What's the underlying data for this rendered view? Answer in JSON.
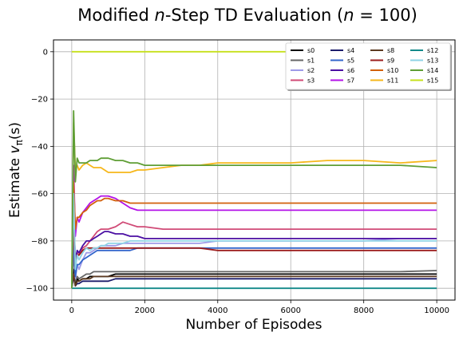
{
  "chart_data": {
    "type": "line",
    "title": "Modified n-Step TD Evaluation (n = 100)",
    "title_parts": [
      "Modified ",
      "n",
      "-Step TD Evaluation (",
      "n",
      " = 100)"
    ],
    "xlabel": "Number of Episodes",
    "ylabel": "Estimate vπ(s)",
    "ylabel_parts": [
      "Estimate ",
      "v",
      "π",
      "(s)"
    ],
    "xlim": [
      -500,
      10500
    ],
    "ylim": [
      -105,
      5
    ],
    "xticks": [
      0,
      2000,
      4000,
      6000,
      8000,
      10000
    ],
    "yticks": [
      0,
      -20,
      -40,
      -60,
      -80,
      -100
    ],
    "grid": true,
    "legend_placement": "top-right",
    "legend_columns": 4,
    "x": [
      0,
      50,
      100,
      150,
      200,
      300,
      400,
      500,
      600,
      700,
      800,
      900,
      1000,
      1200,
      1400,
      1600,
      1800,
      2000,
      2500,
      3000,
      3500,
      4000,
      5000,
      6000,
      7000,
      8000,
      9000,
      10000
    ],
    "series": [
      {
        "name": "s0",
        "color": "#000000",
        "values": [
          -100,
          -92,
          -98,
          -96,
          -97,
          -96,
          -96,
          -95,
          -95,
          -95,
          -95,
          -95,
          -95,
          -94,
          -94,
          -94,
          -94,
          -94,
          -94,
          -94,
          -94,
          -94,
          -94,
          -94,
          -94,
          -94,
          -94,
          -94
        ]
      },
      {
        "name": "s1",
        "color": "#666666",
        "values": [
          -100,
          -85,
          -97,
          -95,
          -96,
          -95,
          -94,
          -94,
          -93,
          -93,
          -93,
          -93,
          -93,
          -93,
          -93,
          -93,
          -93,
          -93,
          -93,
          -93,
          -93,
          -93,
          -93,
          -93,
          -93,
          -93,
          -93,
          -92.5
        ]
      },
      {
        "name": "s2",
        "color": "#9e9ae8",
        "values": [
          -100,
          -70,
          -96,
          -90,
          -92,
          -88,
          -85,
          -85,
          -84,
          -83,
          -82,
          -82,
          -82,
          -82,
          -81,
          -81,
          -81,
          -81,
          -81,
          -81,
          -81,
          -80,
          -80,
          -80,
          -80,
          -80,
          -79,
          -79
        ]
      },
      {
        "name": "s3",
        "color": "#d04a76",
        "values": [
          -100,
          -62,
          -90,
          -85,
          -86,
          -83,
          -82,
          -80,
          -78,
          -76,
          -75,
          -75,
          -75,
          -74,
          -72,
          -73,
          -74,
          -74,
          -75,
          -75,
          -75,
          -75,
          -75,
          -75,
          -75,
          -75,
          -75,
          -75
        ]
      },
      {
        "name": "s4",
        "color": "#1c1c6b",
        "values": [
          -100,
          -95,
          -99,
          -98,
          -98,
          -97,
          -97,
          -97,
          -97,
          -97,
          -97,
          -97,
          -97,
          -96,
          -96,
          -96,
          -96,
          -96,
          -96,
          -96,
          -96,
          -96,
          -96,
          -96,
          -96,
          -96,
          -96,
          -96
        ]
      },
      {
        "name": "s5",
        "color": "#3366cc",
        "values": [
          -100,
          -80,
          -95,
          -90,
          -90,
          -88,
          -87,
          -86,
          -85,
          -84,
          -84,
          -84,
          -84,
          -84,
          -84,
          -84,
          -83,
          -83,
          -83,
          -83,
          -83,
          -83,
          -83,
          -83,
          -83,
          -83,
          -83,
          -83
        ]
      },
      {
        "name": "s6",
        "color": "#4b0fa3",
        "values": [
          -100,
          -70,
          -88,
          -84,
          -85,
          -82,
          -80,
          -80,
          -79,
          -78,
          -77,
          -76,
          -76,
          -77,
          -77,
          -78,
          -78,
          -79,
          -79,
          -79,
          -79,
          -79,
          -79,
          -79,
          -79,
          -79,
          -79,
          -79
        ]
      },
      {
        "name": "s7",
        "color": "#b312e8",
        "values": [
          -100,
          -48,
          -78,
          -70,
          -72,
          -68,
          -66,
          -64,
          -63,
          -62,
          -61,
          -61,
          -61,
          -62,
          -64,
          -66,
          -67,
          -67,
          -67,
          -67,
          -67,
          -67,
          -67,
          -67,
          -67,
          -67,
          -67,
          -67
        ]
      },
      {
        "name": "s8",
        "color": "#5c3a21",
        "values": [
          -100,
          -94,
          -99,
          -97,
          -97,
          -96,
          -96,
          -96,
          -95,
          -95,
          -95,
          -95,
          -95,
          -95,
          -95,
          -95,
          -95,
          -95,
          -95,
          -95,
          -95,
          -95,
          -95,
          -95,
          -95,
          -95,
          -95,
          -95
        ]
      },
      {
        "name": "s9",
        "color": "#9b1c1c",
        "values": [
          -100,
          -72,
          -90,
          -86,
          -86,
          -84,
          -83,
          -83,
          -83,
          -83,
          -83,
          -83,
          -83,
          -83,
          -83,
          -83,
          -83,
          -83,
          -83,
          -83,
          -83,
          -84,
          -84,
          -84,
          -84,
          -84,
          -84,
          -84
        ]
      },
      {
        "name": "s10",
        "color": "#d2600b",
        "values": [
          -100,
          -55,
          -75,
          -70,
          -70,
          -68,
          -67,
          -65,
          -64,
          -63,
          -63,
          -62,
          -62,
          -63,
          -63,
          -64,
          -64,
          -64,
          -64,
          -64,
          -64,
          -64,
          -64,
          -64,
          -64,
          -64,
          -64,
          -64
        ]
      },
      {
        "name": "s11",
        "color": "#f6b71b",
        "values": [
          -100,
          -30,
          -50,
          -48,
          -50,
          -48,
          -47,
          -48,
          -49,
          -49,
          -49,
          -50,
          -51,
          -51,
          -51,
          -51,
          -50,
          -50,
          -49,
          -48,
          -48,
          -47,
          -47,
          -47,
          -46,
          -46,
          -47,
          -46
        ]
      },
      {
        "name": "s12",
        "color": "#138a8a",
        "values": [
          -100,
          -100,
          -100,
          -100,
          -100,
          -100,
          -100,
          -100,
          -100,
          -100,
          -100,
          -100,
          -100,
          -100,
          -100,
          -100,
          -100,
          -100,
          -100,
          -100,
          -100,
          -100,
          -100,
          -100,
          -100,
          -100,
          -100,
          -100
        ]
      },
      {
        "name": "s13",
        "color": "#8fd3e6",
        "values": [
          -100,
          -60,
          -92,
          -86,
          -88,
          -85,
          -83,
          -84,
          -83,
          -83,
          -82,
          -82,
          -81,
          -81,
          -81,
          -80,
          -80,
          -80,
          -80,
          -80,
          -80,
          -80,
          -80,
          -80,
          -80,
          -80,
          -80,
          -80
        ]
      },
      {
        "name": "s14",
        "color": "#5f9e35",
        "values": [
          -100,
          -25,
          -55,
          -45,
          -47,
          -47,
          -47,
          -46,
          -46,
          -46,
          -45,
          -45,
          -45,
          -46,
          -46,
          -47,
          -47,
          -48,
          -48,
          -48,
          -48,
          -48,
          -48,
          -48,
          -48,
          -48,
          -48,
          -49
        ]
      },
      {
        "name": "s15",
        "color": "#c6e01b",
        "values": [
          0,
          0,
          0,
          0,
          0,
          0,
          0,
          0,
          0,
          0,
          0,
          0,
          0,
          0,
          0,
          0,
          0,
          0,
          0,
          0,
          0,
          0,
          0,
          0,
          0,
          0,
          0,
          0
        ]
      }
    ]
  }
}
